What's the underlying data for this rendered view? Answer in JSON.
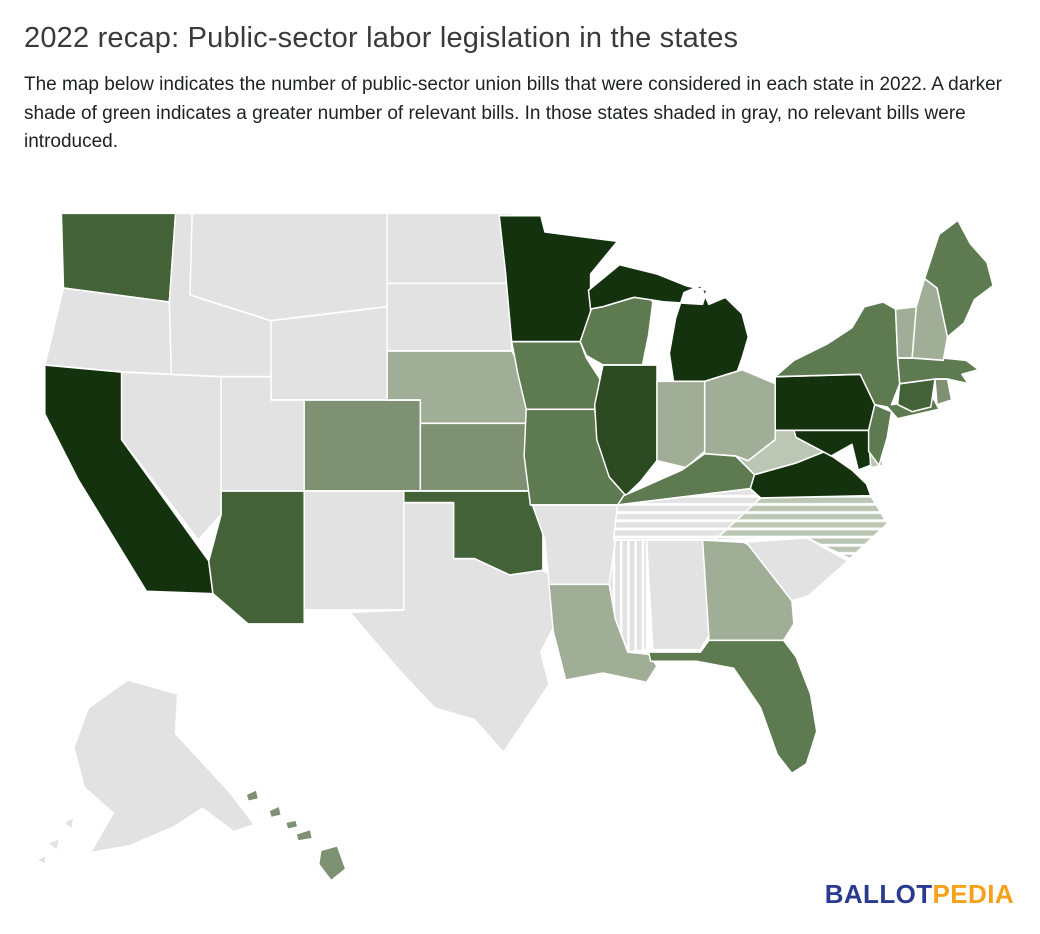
{
  "page": {
    "title": "2022 recap: Public-sector labor legislation in the states",
    "description": "The map below indicates the number of public-sector union bills that were considered in each state in 2022. A darker shade of green indicates a greater number of relevant bills. In those states shaded in gray, no relevant bills were introduced."
  },
  "logo": {
    "part1": "BALLOT",
    "part2": "PEDIA",
    "part1_color": "#2a3b8f",
    "part2_color": "#f7a11a"
  },
  "map": {
    "border_color": "#ffffff",
    "shades": {
      "none": "#e2e2e2",
      "level1": "#bcc6b4",
      "level2": "#a0ad97",
      "level3": "#7e9173",
      "level4": "#5d7a51",
      "level5": "#436238",
      "level6": "#2b4a22",
      "level7": "#14320e"
    },
    "hatched": {
      "MS": "vertical",
      "TN": "horizontal",
      "NC": "horizontal"
    },
    "states": {
      "WA": {
        "name": "Washington",
        "shade": "level5"
      },
      "OR": {
        "name": "Oregon",
        "shade": "none"
      },
      "CA": {
        "name": "California",
        "shade": "level7"
      },
      "NV": {
        "name": "Nevada",
        "shade": "none"
      },
      "ID": {
        "name": "Idaho",
        "shade": "none"
      },
      "MT": {
        "name": "Montana",
        "shade": "none"
      },
      "WY": {
        "name": "Wyoming",
        "shade": "none"
      },
      "UT": {
        "name": "Utah",
        "shade": "none"
      },
      "CO": {
        "name": "Colorado",
        "shade": "level3"
      },
      "AZ": {
        "name": "Arizona",
        "shade": "level5"
      },
      "NM": {
        "name": "New Mexico",
        "shade": "none"
      },
      "ND": {
        "name": "North Dakota",
        "shade": "none"
      },
      "SD": {
        "name": "South Dakota",
        "shade": "none"
      },
      "NE": {
        "name": "Nebraska",
        "shade": "level2"
      },
      "KS": {
        "name": "Kansas",
        "shade": "level3"
      },
      "OK": {
        "name": "Oklahoma",
        "shade": "level5"
      },
      "TX": {
        "name": "Texas",
        "shade": "none"
      },
      "MN": {
        "name": "Minnesota",
        "shade": "level7"
      },
      "IA": {
        "name": "Iowa",
        "shade": "level4"
      },
      "MO": {
        "name": "Missouri",
        "shade": "level4"
      },
      "AR": {
        "name": "Arkansas",
        "shade": "none"
      },
      "LA": {
        "name": "Louisiana",
        "shade": "level2"
      },
      "WI": {
        "name": "Wisconsin",
        "shade": "level4"
      },
      "IL": {
        "name": "Illinois",
        "shade": "level6"
      },
      "MS": {
        "name": "Mississippi",
        "shade": "none"
      },
      "MI": {
        "name": "Michigan",
        "shade": "level7"
      },
      "IN": {
        "name": "Indiana",
        "shade": "level2"
      },
      "OH": {
        "name": "Ohio",
        "shade": "level2"
      },
      "KY": {
        "name": "Kentucky",
        "shade": "level4"
      },
      "TN": {
        "name": "Tennessee",
        "shade": "none"
      },
      "AL": {
        "name": "Alabama",
        "shade": "none"
      },
      "GA": {
        "name": "Georgia",
        "shade": "level2"
      },
      "FL": {
        "name": "Florida",
        "shade": "level4"
      },
      "SC": {
        "name": "South Carolina",
        "shade": "none"
      },
      "NC": {
        "name": "North Carolina",
        "shade": "level1"
      },
      "VA": {
        "name": "Virginia",
        "shade": "level7"
      },
      "WV": {
        "name": "West Virginia",
        "shade": "level1"
      },
      "MD": {
        "name": "Maryland",
        "shade": "level7"
      },
      "DE": {
        "name": "Delaware",
        "shade": "level1"
      },
      "PA": {
        "name": "Pennsylvania",
        "shade": "level7"
      },
      "NJ": {
        "name": "New Jersey",
        "shade": "level4"
      },
      "NY": {
        "name": "New York",
        "shade": "level4"
      },
      "CT": {
        "name": "Connecticut",
        "shade": "level5"
      },
      "RI": {
        "name": "Rhode Island",
        "shade": "level3"
      },
      "MA": {
        "name": "Massachusetts",
        "shade": "level4"
      },
      "VT": {
        "name": "Vermont",
        "shade": "level2"
      },
      "NH": {
        "name": "New Hampshire",
        "shade": "level2"
      },
      "ME": {
        "name": "Maine",
        "shade": "level4"
      },
      "AK": {
        "name": "Alaska",
        "shade": "none"
      },
      "HI": {
        "name": "Hawaii",
        "shade": "level3"
      }
    }
  }
}
